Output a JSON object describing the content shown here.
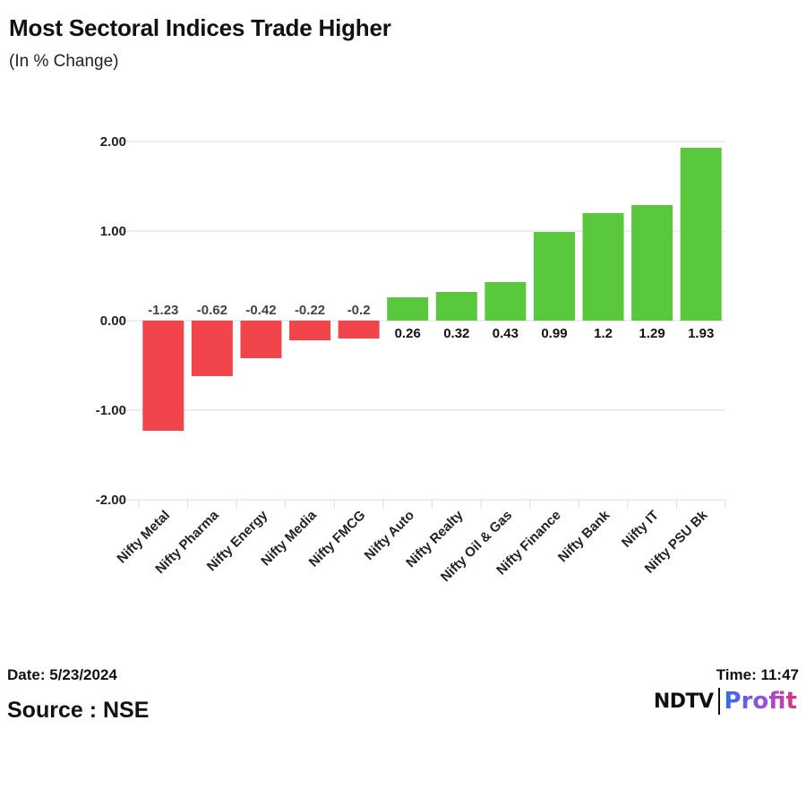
{
  "header": {
    "title": "Most Sectoral Indices Trade Higher",
    "subtitle": "(In % Change)"
  },
  "chart_data": {
    "type": "bar",
    "title": "Most Sectoral Indices Trade Higher",
    "subtitle": "(In % Change)",
    "xlabel": "",
    "ylabel": "",
    "ylim": [
      -2,
      2
    ],
    "yticks": [
      2,
      1,
      0,
      -1,
      -2
    ],
    "ytick_labels": [
      "2.00",
      "1.00",
      "0.00",
      "-1.00",
      "-2.00"
    ],
    "grid": true,
    "categories": [
      "Nifty Metal",
      "Nifty Pharma",
      "Nifty Energy",
      "Nifty Media",
      "Nifty FMCG",
      "Nifty Auto",
      "Nifty Realty",
      "Nifty Oil & Gas",
      "Nifty Finance",
      "Nifty Bank",
      "Nifty IT",
      "Nifty PSU Bk"
    ],
    "values": [
      -1.23,
      -0.62,
      -0.42,
      -0.22,
      -0.2,
      0.26,
      0.32,
      0.43,
      0.99,
      1.2,
      1.29,
      1.93
    ],
    "value_labels": [
      "-1.23",
      "-0.62",
      "-0.42",
      "-0.22",
      "-0.2",
      "0.26",
      "0.32",
      "0.43",
      "0.99",
      "1.2",
      "1.29",
      "1.93"
    ],
    "colors": {
      "positive": "#5ac83c",
      "negative": "#f2454b",
      "grid": "#dcdcdc",
      "axis_text": "#222222"
    }
  },
  "footer": {
    "date": "Date: 5/23/2024",
    "time": "Time: 11:47",
    "source": "Source : NSE"
  },
  "logo": {
    "brand": "NDTV",
    "product": "Profit"
  }
}
